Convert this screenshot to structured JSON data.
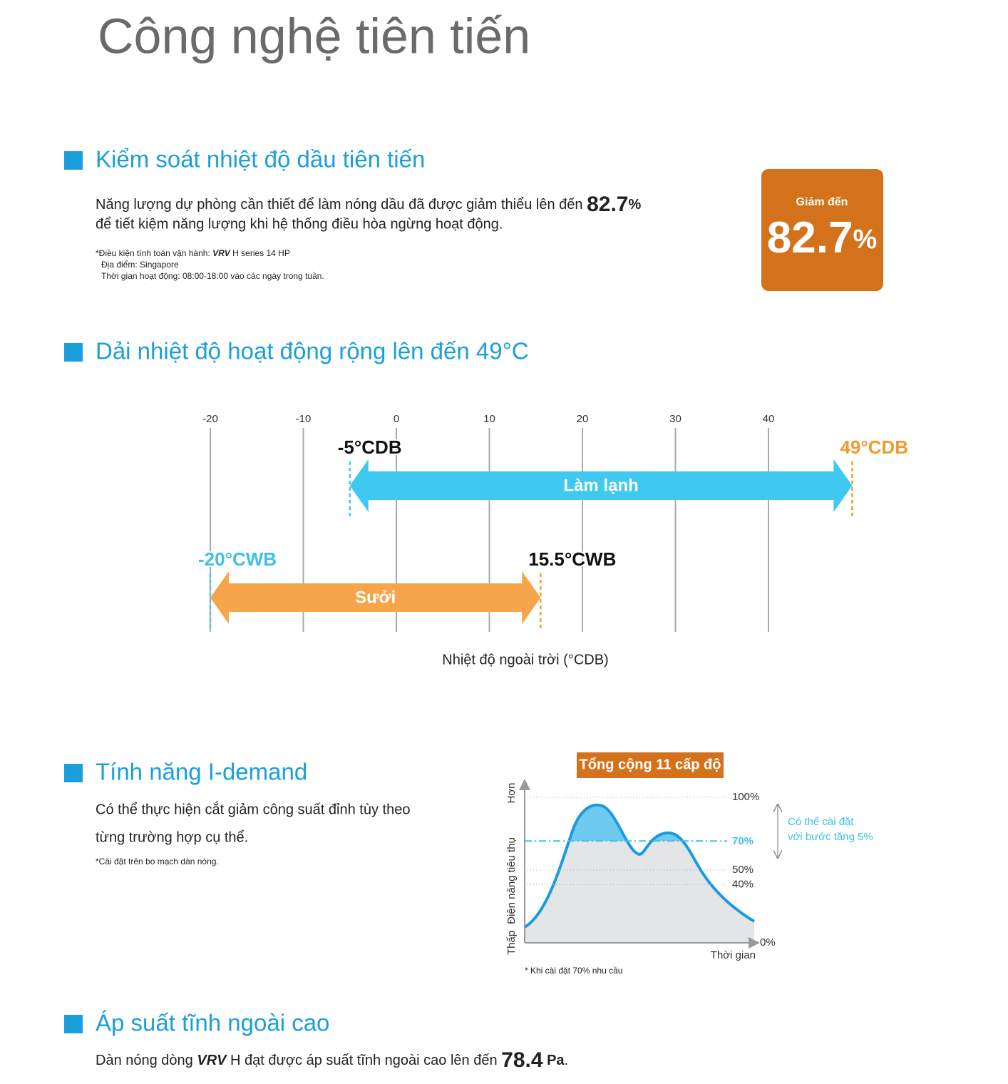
{
  "title": "Công nghệ tiên tiến",
  "oil_control": {
    "heading": "Kiểm soát nhiệt độ dầu tiên tiến",
    "body": {
      "line1": "Năng lượng dự phòng cần thiết để làm nóng dầu đã được giảm thiểu lên đến",
      "value": "82.7",
      "unit": "%",
      "line2": "để tiết kiệm năng lượng khi hệ thống điều hòa ngừng hoạt động."
    },
    "notes": {
      "condition": "*Điều kiện tính toán vận hành:",
      "brand": "VRV",
      "model": "H series 14 HP",
      "location": "Địa điểm: Singapore",
      "hours": "Thời gian hoạt động: 08:00-18:00 vào các ngày trong tuần."
    },
    "badge": {
      "label": "Giảm đến",
      "value": "82.7",
      "unit": "%"
    }
  },
  "temperature_range": {
    "heading": "Dải nhiệt độ hoạt động rộng lên đến 49°C",
    "chart": {
      "ticks": [
        -20,
        -10,
        0,
        10,
        20,
        30,
        40
      ],
      "cooling": {
        "name": "Làm lạnh",
        "from": -5,
        "to": 49,
        "from_label": "-5°CDB",
        "to_label": "49°CDB"
      },
      "heating": {
        "name": "Sưởi",
        "from": -20,
        "to": 15.5,
        "from_label": "-20°CWB",
        "to_label": "15.5°CWB"
      },
      "axis_label": "Nhiệt độ ngoài trời (°CDB)"
    }
  },
  "i_demand": {
    "heading": "Tính năng I-demand",
    "body": {
      "line1": "Có thể thực hiện cắt giảm công suất đỉnh tùy theo",
      "line2": "từng trường hợp cụ thể."
    },
    "note": "*Cài đặt trên bo mạch dàn nóng.",
    "chart": {
      "badge": "Tổng cộng 11 cấp độ",
      "y_top": "Hơn",
      "y_label": "Điện năng tiêu thụ",
      "y_bottom": "Thấp",
      "x_label": "Thời gian",
      "ticks": [
        {
          "value": 100,
          "label": "100%"
        },
        {
          "value": 50,
          "label": "50%"
        },
        {
          "value": 40,
          "label": "40%"
        },
        {
          "value": 0,
          "label": "0%"
        }
      ],
      "demand_limit": {
        "value": 70,
        "label": "70%"
      },
      "annotation": {
        "line1": "Có thể cài đặt",
        "line2": "với bước tăng 5%"
      },
      "footnote": "* Khi cài đặt 70% nhu cầu"
    }
  },
  "static_pressure": {
    "heading": "Áp suất tĩnh ngoài cao",
    "body": {
      "before": "Dàn nóng dòng",
      "brand": "VRV",
      "middle": "H đạt được áp suất tĩnh ngoài cao lên đến",
      "value": "78.4",
      "unit": "Pa",
      "end": "."
    }
  }
}
